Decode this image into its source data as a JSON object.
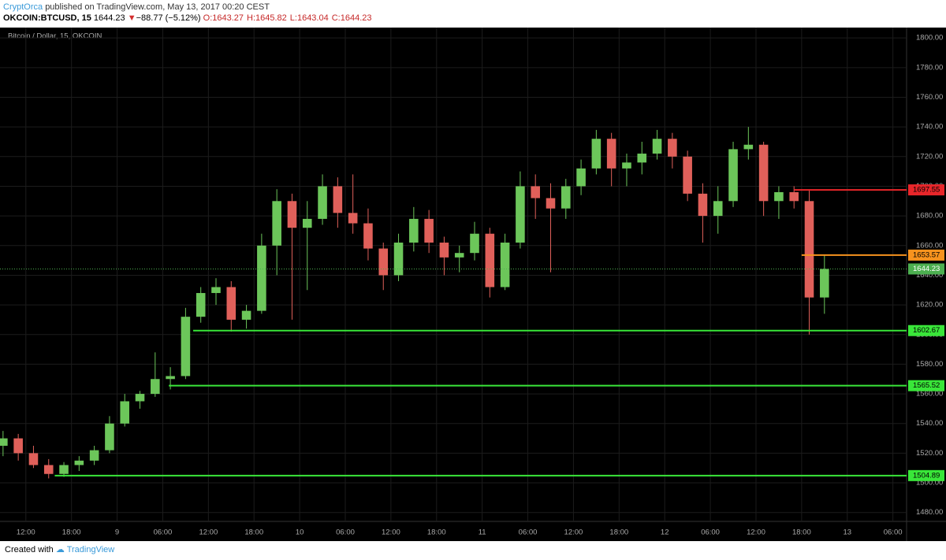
{
  "header": {
    "author": "CryptOrca",
    "published": "published on TradingView.com, May 13, 2017 00:20 CEST",
    "symbol": "OKCOIN:BTCUSD, 15",
    "last": "1644.23",
    "arrow": "▼",
    "change": "−88.77 (−5.12%)",
    "ohlc": [
      "O:1643.27",
      "H:1645.82",
      "L:1643.04",
      "C:1644.23"
    ]
  },
  "footer": {
    "created": "Created with",
    "brand": "TradingView"
  },
  "chart_data": {
    "type": "candlestick",
    "title": "Bitcoin / Dollar, 15, OKCOIN",
    "x": [
      9,
      11,
      13,
      15,
      17,
      19,
      21,
      23,
      25,
      27,
      29,
      31,
      33,
      35,
      37,
      39,
      41,
      43,
      45,
      47,
      49,
      51,
      53,
      55,
      57,
      59,
      61,
      63,
      65,
      67,
      69,
      71,
      73,
      75,
      77,
      79,
      81,
      83,
      85,
      87,
      89,
      91,
      93,
      95,
      97,
      99,
      101,
      103,
      105,
      107,
      109,
      111,
      113,
      115,
      117
    ],
    "open": [
      1525,
      1530,
      1520,
      1512,
      1506,
      1512,
      1515,
      1522,
      1540,
      1555,
      1560,
      1570,
      1572,
      1612,
      1628,
      1632,
      1610,
      1616,
      1660,
      1690,
      1672,
      1678,
      1700,
      1682,
      1675,
      1658,
      1640,
      1662,
      1678,
      1662,
      1652,
      1655,
      1668,
      1632,
      1662,
      1700,
      1692,
      1685,
      1700,
      1712,
      1732,
      1712,
      1716,
      1722,
      1732,
      1720,
      1695,
      1680,
      1690,
      1725,
      1728,
      1690,
      1696,
      1690,
      1625
    ],
    "high": [
      1535,
      1533,
      1525,
      1516,
      1514,
      1518,
      1525,
      1545,
      1560,
      1562,
      1588,
      1578,
      1618,
      1632,
      1638,
      1636,
      1620,
      1668,
      1698,
      1695,
      1690,
      1708,
      1706,
      1708,
      1685,
      1662,
      1668,
      1686,
      1684,
      1666,
      1660,
      1676,
      1672,
      1668,
      1710,
      1708,
      1702,
      1705,
      1718,
      1738,
      1736,
      1722,
      1730,
      1738,
      1736,
      1724,
      1702,
      1700,
      1730,
      1740,
      1730,
      1700,
      1700,
      1698,
      1654
    ],
    "low": [
      1518,
      1515,
      1510,
      1503,
      1504,
      1508,
      1512,
      1520,
      1538,
      1550,
      1558,
      1563,
      1570,
      1608,
      1620,
      1602,
      1604,
      1614,
      1640,
      1610,
      1630,
      1674,
      1672,
      1668,
      1650,
      1630,
      1636,
      1656,
      1655,
      1640,
      1642,
      1650,
      1625,
      1630,
      1658,
      1678,
      1642,
      1678,
      1694,
      1708,
      1700,
      1700,
      1708,
      1718,
      1712,
      1690,
      1662,
      1668,
      1686,
      1718,
      1680,
      1678,
      1685,
      1600,
      1614
    ],
    "close": [
      1530,
      1520,
      1512,
      1506,
      1512,
      1515,
      1522,
      1540,
      1555,
      1560,
      1570,
      1572,
      1612,
      1628,
      1632,
      1610,
      1616,
      1660,
      1690,
      1672,
      1678,
      1700,
      1682,
      1675,
      1658,
      1640,
      1662,
      1678,
      1662,
      1652,
      1655,
      1668,
      1632,
      1662,
      1700,
      1692,
      1685,
      1700,
      1712,
      1732,
      1712,
      1716,
      1722,
      1732,
      1720,
      1695,
      1680,
      1690,
      1725,
      1728,
      1690,
      1696,
      1690,
      1625,
      1644.23
    ],
    "up_color": "#6cc65a",
    "down_color": "#e0605a",
    "levels": [
      {
        "value": 1697.55,
        "color": "#e8262a",
        "x_start": 113
      },
      {
        "value": 1653.57,
        "color": "#f7931e",
        "x_start": 114
      },
      {
        "value": 1602.67,
        "color": "#39e639",
        "x_start": 34
      },
      {
        "value": 1565.52,
        "color": "#39e639",
        "x_start": 30.8
      },
      {
        "value": 1504.89,
        "color": "#39e639",
        "x_start": 15.8
      }
    ],
    "last_price": {
      "value": 1644.23,
      "color": "#4caf50"
    },
    "xlim": [
      8.6,
      127.8
    ],
    "ylim": [
      1474,
      1807
    ],
    "xticks": [
      {
        "value": 12,
        "label": "12:00"
      },
      {
        "value": 18,
        "label": "18:00"
      },
      {
        "value": 24,
        "label": "9"
      },
      {
        "value": 30,
        "label": "06:00"
      },
      {
        "value": 36,
        "label": "12:00"
      },
      {
        "value": 42,
        "label": "18:00"
      },
      {
        "value": 48,
        "label": "10"
      },
      {
        "value": 54,
        "label": "06:00"
      },
      {
        "value": 60,
        "label": "12:00"
      },
      {
        "value": 66,
        "label": "18:00"
      },
      {
        "value": 72,
        "label": "11"
      },
      {
        "value": 78,
        "label": "06:00"
      },
      {
        "value": 84,
        "label": "12:00"
      },
      {
        "value": 90,
        "label": "18:00"
      },
      {
        "value": 96,
        "label": "12"
      },
      {
        "value": 102,
        "label": "06:00"
      },
      {
        "value": 108,
        "label": "12:00"
      },
      {
        "value": 114,
        "label": "18:00"
      },
      {
        "value": 120,
        "label": "13"
      },
      {
        "value": 126,
        "label": "06:00"
      }
    ],
    "yticks": [
      {
        "value": 1480,
        "label": "1480.00"
      },
      {
        "value": 1500,
        "label": "1500.00"
      },
      {
        "value": 1520,
        "label": "1520.00"
      },
      {
        "value": 1540,
        "label": "1540.00"
      },
      {
        "value": 1560,
        "label": "1560.00"
      },
      {
        "value": 1580,
        "label": "1580.00"
      },
      {
        "value": 1600,
        "label": "1600.00"
      },
      {
        "value": 1620,
        "label": "1620.00"
      },
      {
        "value": 1640,
        "label": "1640.00"
      },
      {
        "value": 1660,
        "label": "1660.00"
      },
      {
        "value": 1680,
        "label": "1680.00"
      },
      {
        "value": 1700,
        "label": "1700.00"
      },
      {
        "value": 1720,
        "label": "1720.00"
      },
      {
        "value": 1740,
        "label": "1740.00"
      },
      {
        "value": 1760,
        "label": "1760.00"
      },
      {
        "value": 1780,
        "label": "1780.00"
      },
      {
        "value": 1800,
        "label": "1800.00"
      }
    ],
    "grid": true
  }
}
